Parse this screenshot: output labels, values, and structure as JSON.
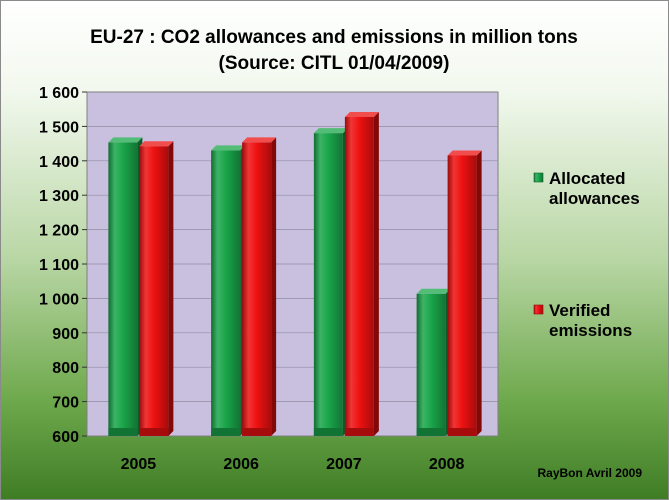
{
  "chart_data": {
    "type": "bar",
    "title": "EU-27 : CO2 allowances and emissions in million tons",
    "subtitle": "(Source: CITL 01/04/2009)",
    "categories": [
      "2005",
      "2006",
      "2007",
      "2008"
    ],
    "series": [
      {
        "name": "Allocated allowances",
        "legend_lines": [
          "Allocated",
          "allowances"
        ],
        "values": [
          1468,
          1445,
          1495,
          1028
        ],
        "color": "#1aa64a"
      },
      {
        "name": "Verified emissions",
        "legend_lines": [
          "Verified",
          "emissions"
        ],
        "values": [
          1457,
          1468,
          1542,
          1430
        ],
        "color": "#ee1111"
      }
    ],
    "ylim": [
      600,
      1600
    ],
    "yticks": [
      "600",
      "700",
      "800",
      "900",
      "1 000",
      "1 100",
      "1 200",
      "1 300",
      "1 400",
      "1 500",
      "1 600"
    ],
    "grid": true,
    "legend_position": "right",
    "plot_background": "#c9c0e0"
  },
  "credit": "RayBon Avril 2009"
}
